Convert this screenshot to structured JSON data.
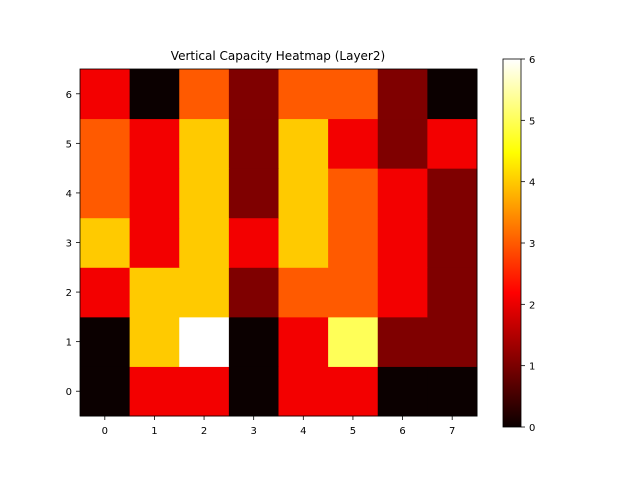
{
  "chart_data": {
    "type": "heatmap",
    "title": "Vertical Capacity Heatmap (Layer2)",
    "colormap": "hot",
    "x": [
      0,
      1,
      2,
      3,
      4,
      5,
      6,
      7
    ],
    "y": [
      0,
      1,
      2,
      3,
      4,
      5,
      6
    ],
    "values": [
      [
        0,
        2,
        2,
        0,
        2,
        2,
        0,
        0
      ],
      [
        0,
        4,
        6,
        0,
        2,
        5,
        1,
        1
      ],
      [
        2,
        4,
        4,
        1,
        3,
        3,
        2,
        1
      ],
      [
        4,
        2,
        4,
        2,
        4,
        3,
        2,
        1
      ],
      [
        3,
        2,
        4,
        1,
        4,
        3,
        2,
        1
      ],
      [
        3,
        2,
        4,
        1,
        4,
        2,
        1,
        2
      ],
      [
        2,
        0,
        3,
        1,
        3,
        3,
        1,
        0
      ]
    ],
    "colorbar": {
      "range": [
        0,
        6
      ],
      "ticks": [
        0,
        1,
        2,
        3,
        4,
        5,
        6
      ]
    },
    "xticks": [
      "0",
      "1",
      "2",
      "3",
      "4",
      "5",
      "6",
      "7"
    ],
    "yticks": [
      "0",
      "1",
      "2",
      "3",
      "4",
      "5",
      "6"
    ]
  }
}
